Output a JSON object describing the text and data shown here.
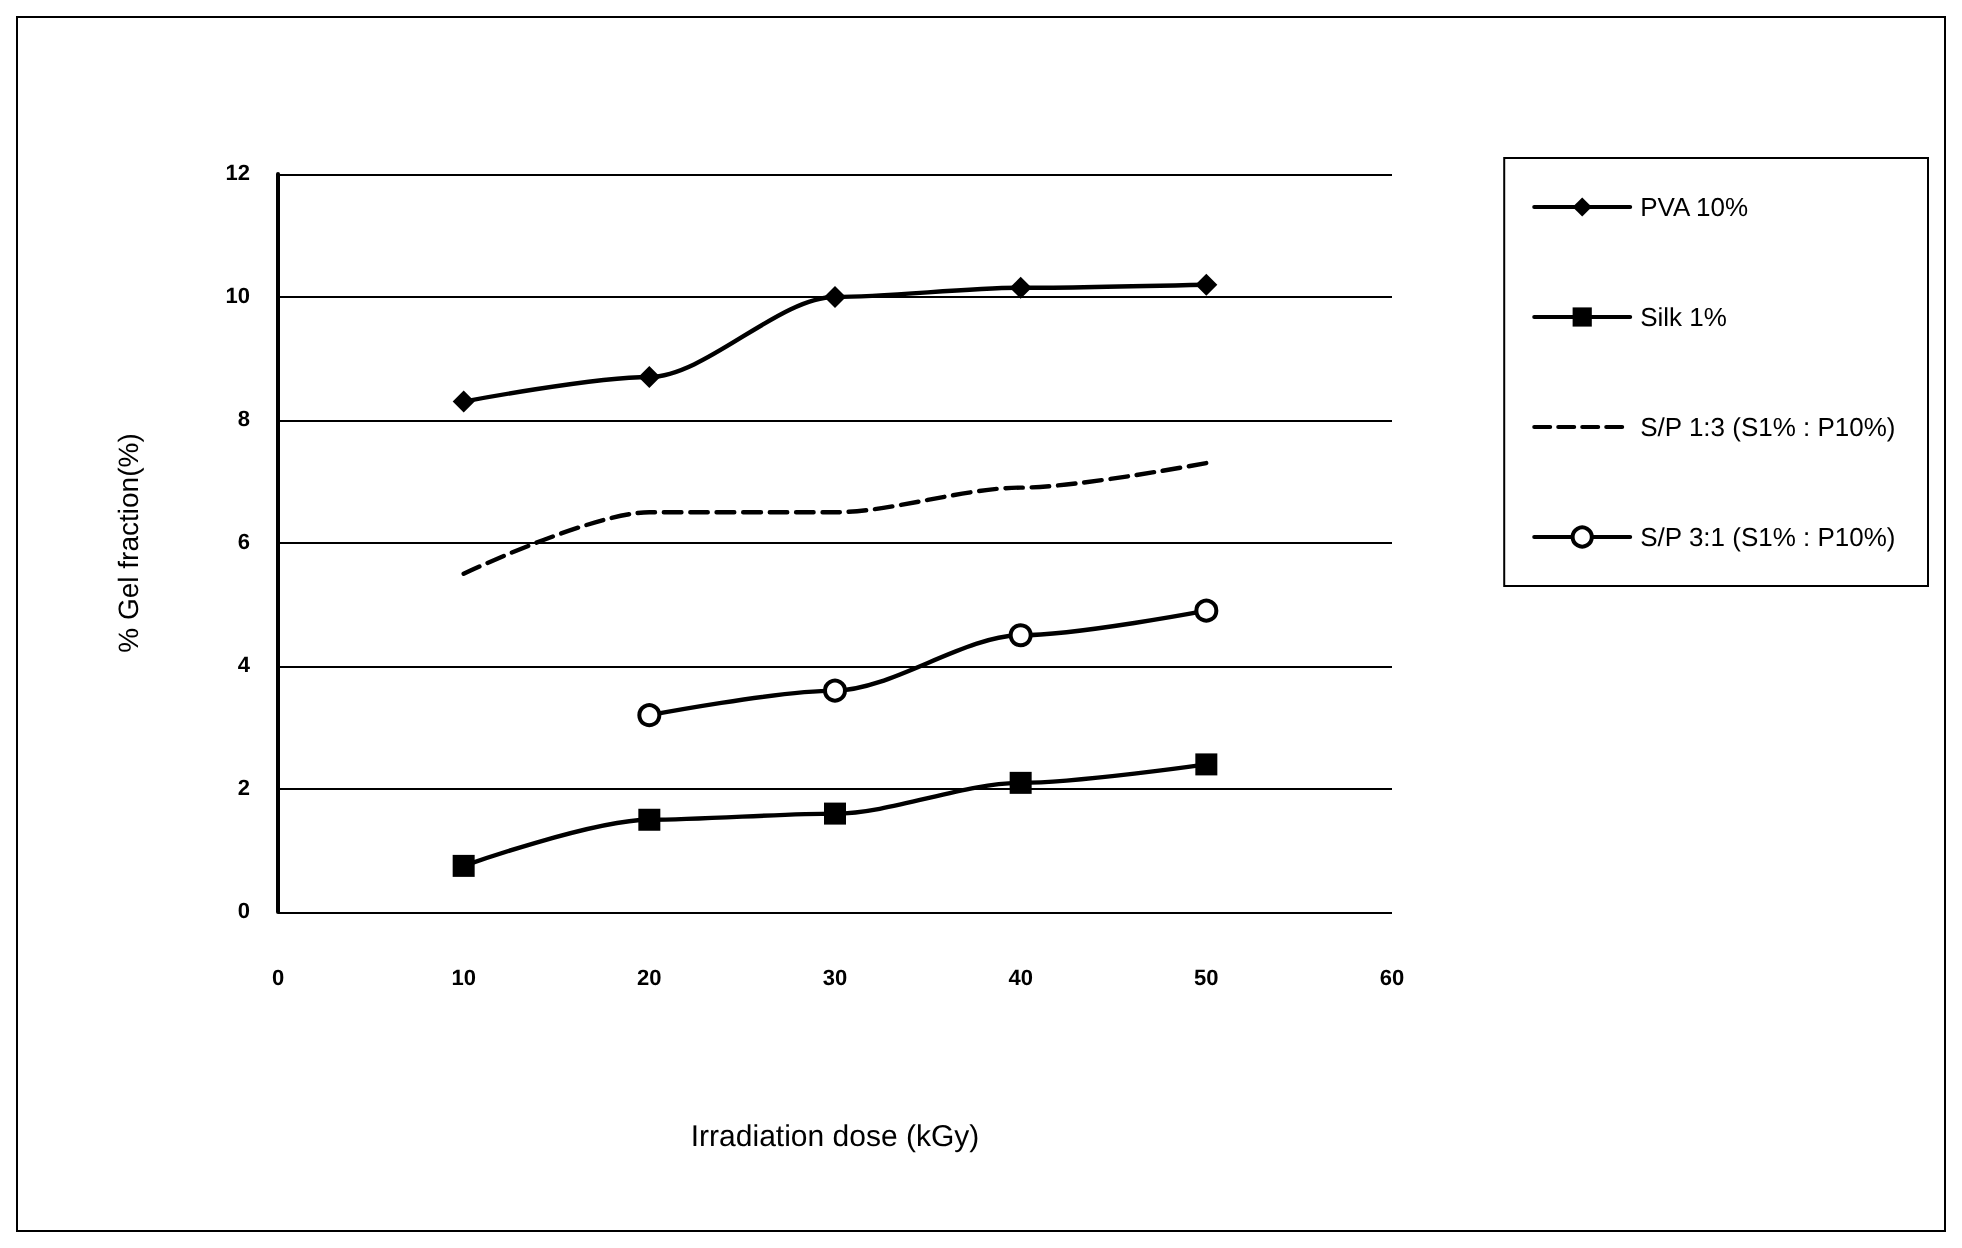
{
  "chart_data": {
    "type": "line",
    "xlabel": "Irradiation dose (kGy)",
    "ylabel": "% Gel fraction(%)",
    "x": [
      10,
      20,
      30,
      40,
      50
    ],
    "series": [
      {
        "name": "PVA 10%",
        "color": "#000000",
        "marker": "diamond",
        "line_style": "solid",
        "values": [
          8.3,
          8.7,
          10.0,
          10.15,
          10.2
        ]
      },
      {
        "name": "Silk 1%",
        "color": "#000000",
        "marker": "square",
        "line_style": "solid",
        "values": [
          0.75,
          1.5,
          1.6,
          2.1,
          2.4
        ]
      },
      {
        "name": "S/P 1:3 (S1% : P10%)",
        "color": "#000000",
        "marker": "none",
        "line_style": "dashed",
        "values": [
          5.5,
          6.5,
          6.5,
          6.9,
          7.3
        ]
      },
      {
        "name": "S/P 3:1 (S1% : P10%)",
        "color": "#000000",
        "marker": "circle",
        "line_style": "solid",
        "values": [
          null,
          3.2,
          3.6,
          4.5,
          4.9
        ]
      }
    ],
    "xlim": [
      0,
      60
    ],
    "xticks": [
      0,
      10,
      20,
      30,
      40,
      50,
      60
    ],
    "ylim": [
      0,
      12
    ],
    "yticks": [
      0,
      2,
      4,
      6,
      8,
      10,
      12
    ],
    "grid": "y",
    "legend": "right"
  }
}
